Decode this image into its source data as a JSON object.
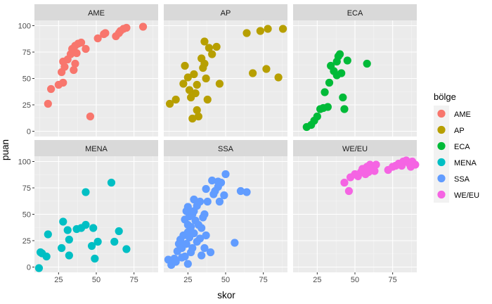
{
  "chart_data": {
    "type": "scatter",
    "xlabel": "skor",
    "ylabel": "puan",
    "xlim": [
      9,
      91
    ],
    "ylim": [
      -5,
      105
    ],
    "x_ticks": [
      25,
      50,
      75
    ],
    "y_ticks": [
      0,
      25,
      50,
      75,
      100
    ],
    "grid": true,
    "legend": {
      "title": "bölge",
      "position": "right"
    },
    "facets": [
      {
        "name": "AME",
        "color": "#F8766D",
        "points": [
          [
            18,
            26
          ],
          [
            20,
            40
          ],
          [
            25,
            44
          ],
          [
            28,
            46
          ],
          [
            27,
            56
          ],
          [
            29,
            61
          ],
          [
            28,
            66
          ],
          [
            31,
            68
          ],
          [
            33,
            73
          ],
          [
            34,
            78
          ],
          [
            36,
            81
          ],
          [
            38,
            83
          ],
          [
            40,
            84
          ],
          [
            37,
            74
          ],
          [
            43,
            78
          ],
          [
            35,
            58
          ],
          [
            36,
            64
          ],
          [
            46,
            14
          ],
          [
            51,
            88
          ],
          [
            55,
            92
          ],
          [
            56,
            93
          ],
          [
            63,
            90
          ],
          [
            65,
            93
          ],
          [
            66,
            95
          ],
          [
            68,
            97
          ],
          [
            70,
            98
          ],
          [
            81,
            99
          ]
        ]
      },
      {
        "name": "AP",
        "color": "#B79F00",
        "points": [
          [
            13,
            26
          ],
          [
            17,
            30
          ],
          [
            22,
            45
          ],
          [
            23,
            62
          ],
          [
            25,
            51
          ],
          [
            26,
            39
          ],
          [
            27,
            32
          ],
          [
            28,
            12
          ],
          [
            29,
            54
          ],
          [
            30,
            36
          ],
          [
            31,
            20
          ],
          [
            31,
            44
          ],
          [
            32,
            14
          ],
          [
            34,
            69
          ],
          [
            35,
            60
          ],
          [
            36,
            64
          ],
          [
            36,
            85
          ],
          [
            37,
            50
          ],
          [
            38,
            30
          ],
          [
            39,
            79
          ],
          [
            41,
            73
          ],
          [
            44,
            80
          ],
          [
            46,
            45
          ],
          [
            64,
            93
          ],
          [
            68,
            55
          ],
          [
            73,
            95
          ],
          [
            77,
            59
          ],
          [
            78,
            97
          ],
          [
            85,
            51
          ],
          [
            88,
            97
          ]
        ]
      },
      {
        "name": "ECA",
        "color": "#00BA38",
        "points": [
          [
            18,
            4
          ],
          [
            21,
            6
          ],
          [
            23,
            10
          ],
          [
            25,
            14
          ],
          [
            27,
            21
          ],
          [
            29,
            22
          ],
          [
            30,
            37
          ],
          [
            32,
            23
          ],
          [
            33,
            46
          ],
          [
            34,
            62
          ],
          [
            36,
            57
          ],
          [
            38,
            66
          ],
          [
            39,
            71
          ],
          [
            40,
            73
          ],
          [
            38,
            53
          ],
          [
            41,
            55
          ],
          [
            42,
            32
          ],
          [
            43,
            21
          ],
          [
            45,
            67
          ],
          [
            58,
            64
          ]
        ]
      },
      {
        "name": "MENA",
        "color": "#00BFC4",
        "points": [
          [
            12,
            -1
          ],
          [
            13,
            14
          ],
          [
            14,
            13
          ],
          [
            17,
            10
          ],
          [
            18,
            31
          ],
          [
            27,
            18
          ],
          [
            28,
            43
          ],
          [
            31,
            35
          ],
          [
            32,
            26
          ],
          [
            32,
            11
          ],
          [
            37,
            36
          ],
          [
            40,
            37
          ],
          [
            43,
            71
          ],
          [
            43,
            40
          ],
          [
            47,
            20
          ],
          [
            48,
            37
          ],
          [
            49,
            8
          ],
          [
            51,
            24
          ],
          [
            60,
            80
          ],
          [
            62,
            24
          ],
          [
            65,
            34
          ],
          [
            70,
            17
          ]
        ]
      },
      {
        "name": "SSA",
        "color": "#619CFF",
        "points": [
          [
            12,
            7
          ],
          [
            14,
            2
          ],
          [
            16,
            8
          ],
          [
            17,
            5
          ],
          [
            18,
            15
          ],
          [
            19,
            22
          ],
          [
            20,
            26
          ],
          [
            21,
            18
          ],
          [
            21,
            9
          ],
          [
            22,
            30
          ],
          [
            23,
            45
          ],
          [
            23,
            10
          ],
          [
            24,
            53
          ],
          [
            24,
            22
          ],
          [
            25,
            57
          ],
          [
            25,
            40
          ],
          [
            25,
            33
          ],
          [
            25,
            3
          ],
          [
            26,
            48
          ],
          [
            26,
            28
          ],
          [
            27,
            14
          ],
          [
            27,
            38
          ],
          [
            28,
            18
          ],
          [
            28,
            50
          ],
          [
            29,
            64
          ],
          [
            29,
            53
          ],
          [
            29,
            32
          ],
          [
            30,
            44
          ],
          [
            31,
            58
          ],
          [
            31,
            24
          ],
          [
            32,
            40
          ],
          [
            33,
            62
          ],
          [
            33,
            27
          ],
          [
            34,
            37
          ],
          [
            34,
            11
          ],
          [
            35,
            47
          ],
          [
            36,
            50
          ],
          [
            36,
            18
          ],
          [
            37,
            30
          ],
          [
            37,
            74
          ],
          [
            38,
            62
          ],
          [
            40,
            14
          ],
          [
            41,
            82
          ],
          [
            42,
            69
          ],
          [
            43,
            72
          ],
          [
            45,
            81
          ],
          [
            45,
            76
          ],
          [
            46,
            62
          ],
          [
            47,
            80
          ],
          [
            49,
            68
          ],
          [
            50,
            88
          ],
          [
            56,
            23
          ],
          [
            60,
            72
          ],
          [
            64,
            71
          ]
        ]
      },
      {
        "name": "WE/EU",
        "color": "#F564E3",
        "points": [
          [
            43,
            80
          ],
          [
            46,
            72
          ],
          [
            47,
            85
          ],
          [
            50,
            88
          ],
          [
            52,
            86
          ],
          [
            54,
            90
          ],
          [
            55,
            93
          ],
          [
            57,
            88
          ],
          [
            58,
            95
          ],
          [
            59,
            90
          ],
          [
            60,
            97
          ],
          [
            62,
            94
          ],
          [
            63,
            91
          ],
          [
            64,
            97
          ],
          [
            72,
            92
          ],
          [
            75,
            95
          ],
          [
            77,
            96
          ],
          [
            79,
            98
          ],
          [
            81,
            96
          ],
          [
            82,
            100
          ],
          [
            84,
            101
          ],
          [
            86,
            98
          ],
          [
            87,
            95
          ],
          [
            88,
            100
          ],
          [
            90,
            97
          ]
        ]
      }
    ]
  }
}
